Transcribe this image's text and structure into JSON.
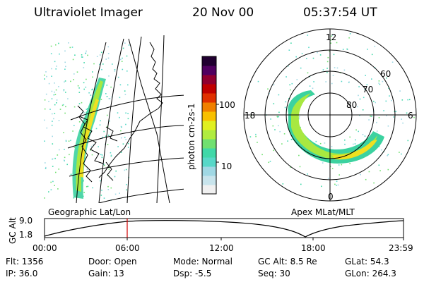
{
  "header": {
    "instrument": "Ultraviolet Imager",
    "date": "20 Nov 00",
    "time": "05:37:54 UT"
  },
  "colorbar": {
    "unit_label": "photon cm-2s-1",
    "ticks": [
      "100",
      "10"
    ],
    "colors": [
      "#f0f0f0",
      "#c8e4ec",
      "#a0d8e4",
      "#58d8c8",
      "#40d8a8",
      "#70e070",
      "#b0ec40",
      "#e0f020",
      "#f8c000",
      "#f08000",
      "#e03000",
      "#c00000",
      "#900030",
      "#500060",
      "#200030"
    ]
  },
  "left_map": {
    "label": "Geographic Lat/Lon"
  },
  "right_map": {
    "label": "Apex MLat/MLT",
    "mlt_labels": {
      "top": "12",
      "left": "18",
      "right": "6",
      "bottom": "0"
    },
    "lat_labels": [
      "60",
      "70",
      "80"
    ]
  },
  "altitude_plot": {
    "ylabel": "GC Alt",
    "yticks": [
      "9.0",
      "1.8"
    ],
    "xticks": [
      "00:00",
      "06:00",
      "12:00",
      "18:00",
      "23:59"
    ],
    "marker_color": "#d00000"
  },
  "info": {
    "flt": "Flt: 1356",
    "ip": "IP: 36.0",
    "door": "Door: Open",
    "gain": "Gain: 13",
    "mode": "Mode: Normal",
    "dsp": "Dsp:  -5.5",
    "gc_alt": "GC Alt: 8.5 Re",
    "seq": "Seq: 30",
    "glat": "GLat:  54.3",
    "glon": "GLon: 264.3"
  }
}
